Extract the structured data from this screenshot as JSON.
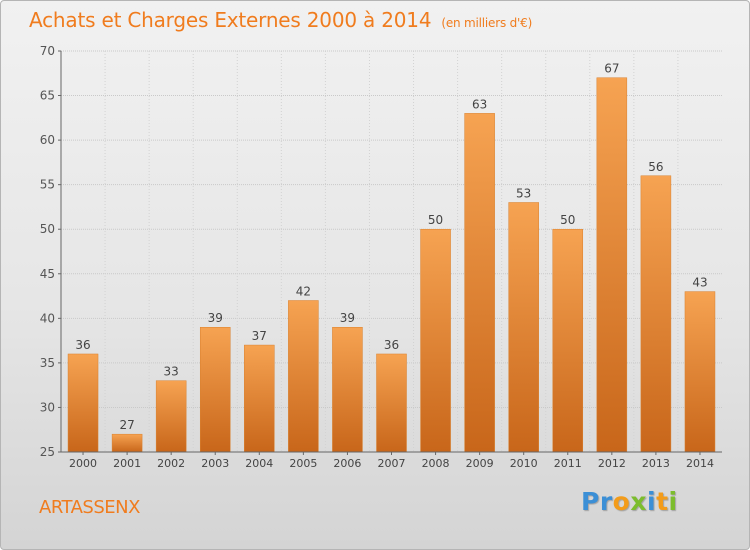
{
  "header": {
    "title": "Achats et Charges Externes 2000 à 2014",
    "unit": "(en milliers d'€)"
  },
  "footer": {
    "commune": "ARTASSENX",
    "brand": "Proxiti",
    "brand_letters": [
      {
        "ch": "P",
        "color": "#3b8fd6"
      },
      {
        "ch": "r",
        "color": "#3b8fd6"
      },
      {
        "ch": "o",
        "color": "#f39c1a"
      },
      {
        "ch": "x",
        "color": "#7cbd2d"
      },
      {
        "ch": "i",
        "color": "#3b8fd6"
      },
      {
        "ch": "t",
        "color": "#f39c1a"
      },
      {
        "ch": "i",
        "color": "#7cbd2d"
      }
    ]
  },
  "colors": {
    "accent": "#f07c1e",
    "bar_top": "#f6a352",
    "bar_bottom": "#c8661a"
  },
  "chart_data": {
    "type": "bar",
    "title": "Achats et Charges Externes 2000 à 2014",
    "subtitle": "(en milliers d'€)",
    "categories": [
      "2000",
      "2001",
      "2002",
      "2003",
      "2004",
      "2005",
      "2006",
      "2007",
      "2008",
      "2009",
      "2010",
      "2011",
      "2012",
      "2013",
      "2014"
    ],
    "values": [
      36,
      27,
      33,
      39,
      37,
      42,
      39,
      36,
      50,
      63,
      53,
      50,
      67,
      56,
      43
    ],
    "ylim": [
      25,
      70
    ],
    "yticks": [
      25,
      30,
      35,
      40,
      45,
      50,
      55,
      60,
      65,
      70
    ],
    "grid": true,
    "xlabel": "",
    "ylabel": ""
  }
}
